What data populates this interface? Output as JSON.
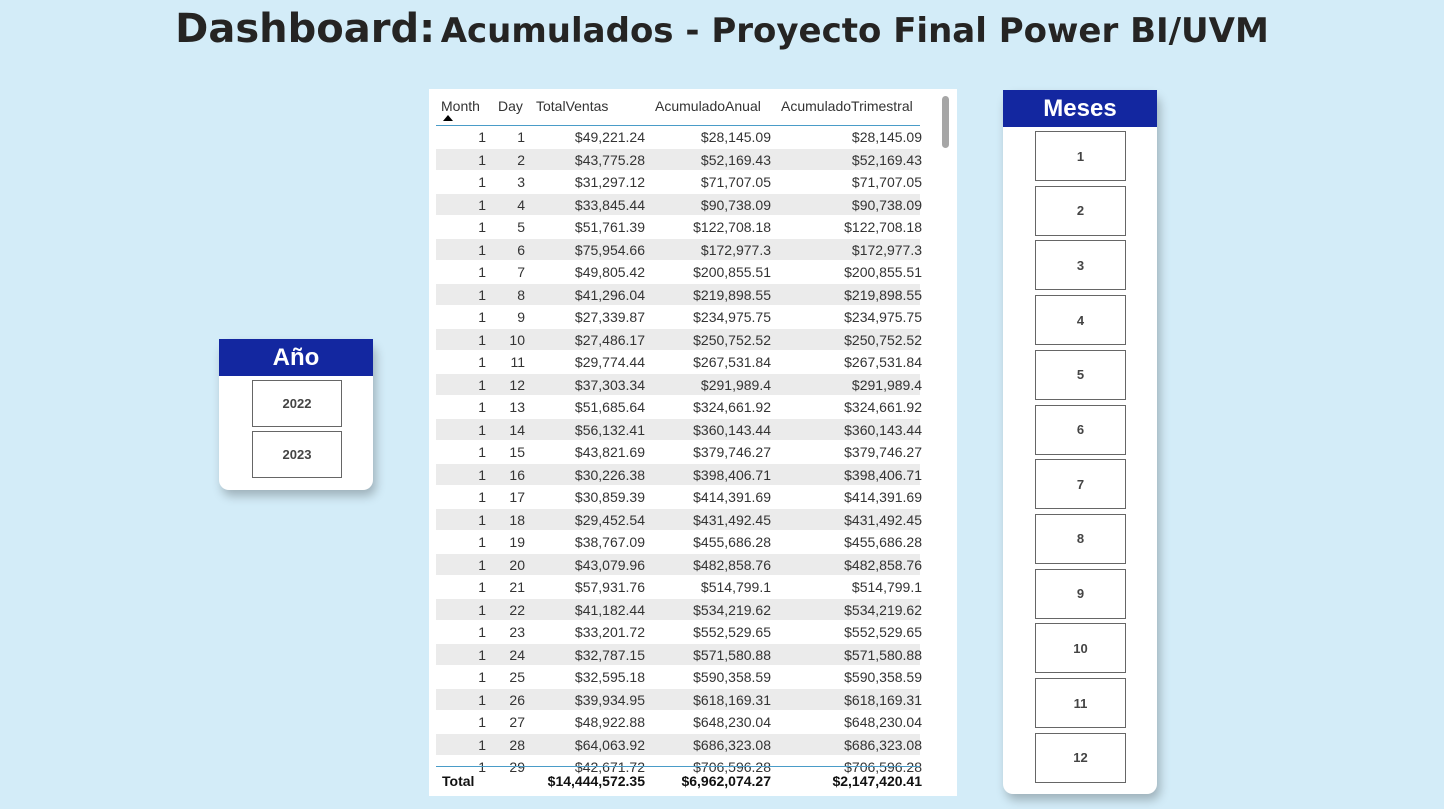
{
  "title": {
    "part1": "Dashboard:",
    "part2": "Acumulados - Proyecto Final Power BI/UVM"
  },
  "year_slicer": {
    "title": "Año",
    "options": [
      "2022",
      "2023"
    ]
  },
  "month_slicer": {
    "title": "Meses",
    "options": [
      "1",
      "2",
      "3",
      "4",
      "5",
      "6",
      "7",
      "8",
      "9",
      "10",
      "11",
      "12"
    ]
  },
  "table": {
    "columns": [
      "Month",
      "Day",
      "TotalVentas",
      "AcumuladoAnual",
      "AcumuladoTrimestral"
    ],
    "rows": [
      [
        "1",
        "1",
        "$49,221.24",
        "$28,145.09",
        "$28,145.09"
      ],
      [
        "1",
        "2",
        "$43,775.28",
        "$52,169.43",
        "$52,169.43"
      ],
      [
        "1",
        "3",
        "$31,297.12",
        "$71,707.05",
        "$71,707.05"
      ],
      [
        "1",
        "4",
        "$33,845.44",
        "$90,738.09",
        "$90,738.09"
      ],
      [
        "1",
        "5",
        "$51,761.39",
        "$122,708.18",
        "$122,708.18"
      ],
      [
        "1",
        "6",
        "$75,954.66",
        "$172,977.3",
        "$172,977.3"
      ],
      [
        "1",
        "7",
        "$49,805.42",
        "$200,855.51",
        "$200,855.51"
      ],
      [
        "1",
        "8",
        "$41,296.04",
        "$219,898.55",
        "$219,898.55"
      ],
      [
        "1",
        "9",
        "$27,339.87",
        "$234,975.75",
        "$234,975.75"
      ],
      [
        "1",
        "10",
        "$27,486.17",
        "$250,752.52",
        "$250,752.52"
      ],
      [
        "1",
        "11",
        "$29,774.44",
        "$267,531.84",
        "$267,531.84"
      ],
      [
        "1",
        "12",
        "$37,303.34",
        "$291,989.4",
        "$291,989.4"
      ],
      [
        "1",
        "13",
        "$51,685.64",
        "$324,661.92",
        "$324,661.92"
      ],
      [
        "1",
        "14",
        "$56,132.41",
        "$360,143.44",
        "$360,143.44"
      ],
      [
        "1",
        "15",
        "$43,821.69",
        "$379,746.27",
        "$379,746.27"
      ],
      [
        "1",
        "16",
        "$30,226.38",
        "$398,406.71",
        "$398,406.71"
      ],
      [
        "1",
        "17",
        "$30,859.39",
        "$414,391.69",
        "$414,391.69"
      ],
      [
        "1",
        "18",
        "$29,452.54",
        "$431,492.45",
        "$431,492.45"
      ],
      [
        "1",
        "19",
        "$38,767.09",
        "$455,686.28",
        "$455,686.28"
      ],
      [
        "1",
        "20",
        "$43,079.96",
        "$482,858.76",
        "$482,858.76"
      ],
      [
        "1",
        "21",
        "$57,931.76",
        "$514,799.1",
        "$514,799.1"
      ],
      [
        "1",
        "22",
        "$41,182.44",
        "$534,219.62",
        "$534,219.62"
      ],
      [
        "1",
        "23",
        "$33,201.72",
        "$552,529.65",
        "$552,529.65"
      ],
      [
        "1",
        "24",
        "$32,787.15",
        "$571,580.88",
        "$571,580.88"
      ],
      [
        "1",
        "25",
        "$32,595.18",
        "$590,358.59",
        "$590,358.59"
      ],
      [
        "1",
        "26",
        "$39,934.95",
        "$618,169.31",
        "$618,169.31"
      ],
      [
        "1",
        "27",
        "$48,922.88",
        "$648,230.04",
        "$648,230.04"
      ],
      [
        "1",
        "28",
        "$64,063.92",
        "$686,323.08",
        "$686,323.08"
      ],
      [
        "1",
        "29",
        "$42,671.72",
        "$706,596.28",
        "$706,596.28"
      ]
    ],
    "total": {
      "label": "Total",
      "total_ventas": "$14,444,572.35",
      "acumulado_anual": "$6,962,074.27",
      "acumulado_trimestral": "$2,147,420.41"
    }
  },
  "sort_indicator": "sort-ascending-icon"
}
